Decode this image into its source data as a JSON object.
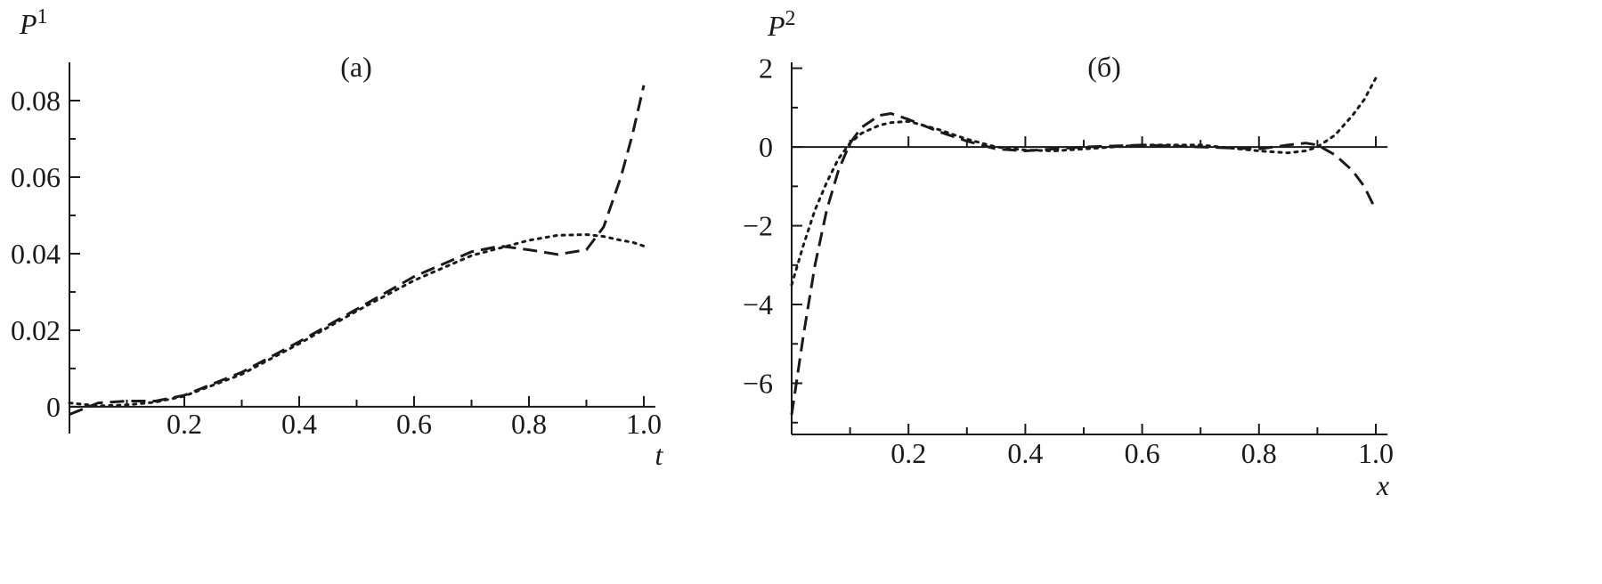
{
  "chart_data": [
    {
      "type": "line",
      "panel_label": "(a)",
      "y_label": "P",
      "y_label_sup": "1",
      "x_label": "t",
      "xlim": [
        0,
        1.02
      ],
      "ylim": [
        -0.007,
        0.09
      ],
      "xticks": [
        0.2,
        0.4,
        0.6,
        0.8,
        {
          "value": 1,
          "label": "1.0"
        }
      ],
      "xminor": [
        0.1,
        0.3,
        0.5,
        0.7,
        0.9
      ],
      "yticks": [
        0,
        0.02,
        0.04,
        0.06,
        0.08
      ],
      "yminor": [
        0.01,
        0.03,
        0.05,
        0.07
      ],
      "xaxis_position": "zero",
      "zero_line": false,
      "x": [
        0,
        0.05,
        0.1,
        0.15,
        0.2,
        0.3,
        0.4,
        0.5,
        0.6,
        0.7,
        0.75,
        0.8,
        0.85,
        0.9,
        0.93,
        0.96,
        0.98,
        1.0
      ],
      "series": [
        {
          "color": "#1a1a1a",
          "dash": "dashed",
          "values": [
            -0.002,
            0.001,
            0.0015,
            0.0015,
            0.003,
            0.009,
            0.017,
            0.0255,
            0.034,
            0.0405,
            0.042,
            0.041,
            0.0398,
            0.041,
            0.047,
            0.06,
            0.071,
            0.084
          ]
        },
        {
          "color": "#1a1a1a",
          "dash": "dotted",
          "values": [
            0.001,
            0.0002,
            0.0005,
            0.0012,
            0.0028,
            0.0085,
            0.0165,
            0.025,
            0.033,
            0.0395,
            0.0415,
            0.0435,
            0.0448,
            0.045,
            0.0445,
            0.0435,
            0.043,
            0.042
          ]
        }
      ]
    },
    {
      "type": "line",
      "panel_label": "(б)",
      "y_label": "P",
      "y_label_sup": "2",
      "x_label": "x",
      "xlim": [
        0,
        1.02
      ],
      "ylim": [
        -7.3,
        2.15
      ],
      "xticks": [
        0.2,
        0.4,
        0.6,
        0.8,
        {
          "value": 1,
          "label": "1.0"
        }
      ],
      "xminor": [
        0.1,
        0.3,
        0.5,
        0.7,
        0.9
      ],
      "yticks": [
        {
          "value": -6,
          "label": "−6"
        },
        {
          "value": -4,
          "label": "−4"
        },
        {
          "value": -2,
          "label": "−2"
        },
        0,
        2
      ],
      "yminor": [
        -7,
        -5,
        -3,
        -1,
        1
      ],
      "xaxis_position": "bottom",
      "zero_line": true,
      "x": [
        0,
        0.02,
        0.04,
        0.06,
        0.08,
        0.1,
        0.12,
        0.15,
        0.17,
        0.2,
        0.25,
        0.3,
        0.35,
        0.4,
        0.45,
        0.5,
        0.6,
        0.7,
        0.8,
        0.85,
        0.88,
        0.9,
        0.93,
        0.96,
        0.98,
        1.0
      ],
      "series": [
        {
          "color": "#1a1a1a",
          "dash": "dashed",
          "values": [
            -6.8,
            -4.8,
            -3.0,
            -1.6,
            -0.6,
            0.1,
            0.5,
            0.8,
            0.85,
            0.7,
            0.4,
            0.15,
            -0.05,
            -0.1,
            -0.05,
            0.0,
            0.05,
            0.0,
            -0.05,
            0.05,
            0.1,
            0.05,
            -0.2,
            -0.6,
            -1.0,
            -1.6
          ]
        },
        {
          "color": "#1a1a1a",
          "dash": "dotted",
          "values": [
            -3.5,
            -2.5,
            -1.6,
            -0.9,
            -0.3,
            0.1,
            0.35,
            0.55,
            0.62,
            0.65,
            0.45,
            0.2,
            0.0,
            -0.08,
            -0.1,
            -0.05,
            0.05,
            0.05,
            -0.1,
            -0.15,
            -0.1,
            0.0,
            0.3,
            0.8,
            1.2,
            1.75
          ]
        }
      ]
    }
  ]
}
